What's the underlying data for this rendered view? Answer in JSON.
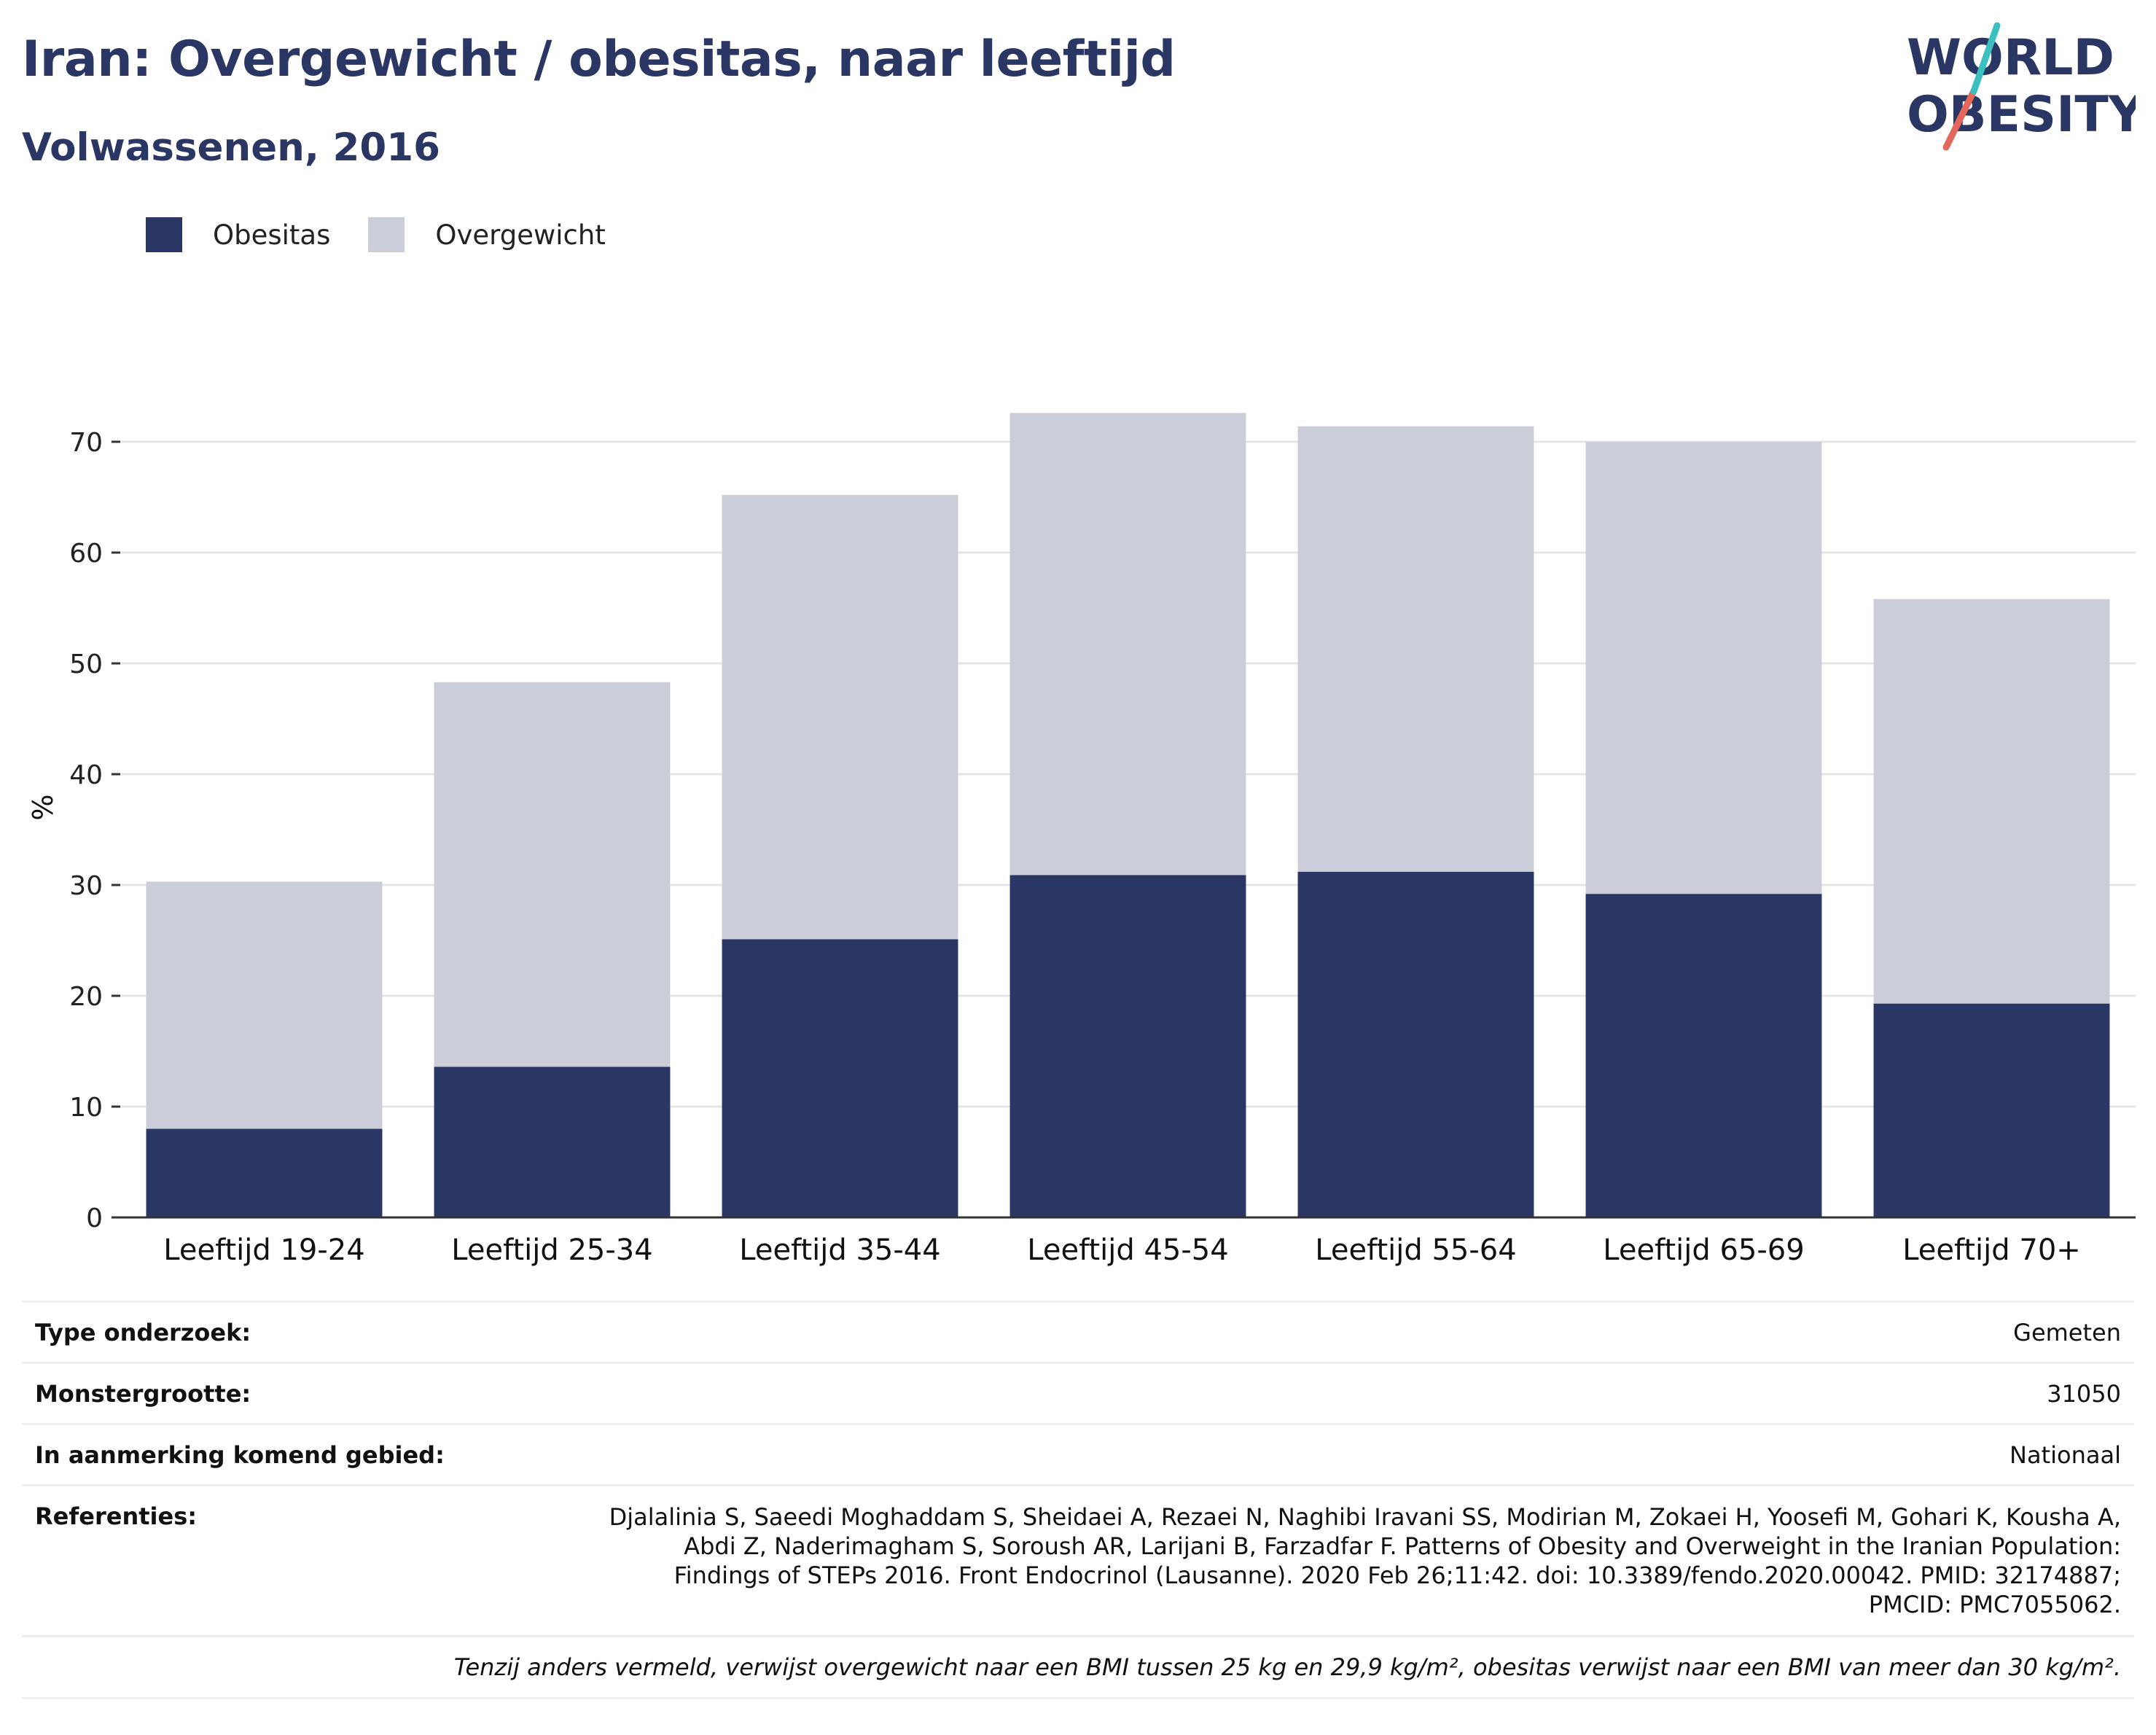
{
  "header": {
    "title": "Iran: Overgewicht / obesitas, naar leeftijd",
    "subtitle": "Volwassenen, 2016"
  },
  "logo": {
    "line1": "WORLD",
    "line2": "OBESITY"
  },
  "legend": {
    "obesity_label": "Obesitas",
    "overweight_label": "Overgewicht"
  },
  "colors": {
    "obesity": "#2a3663",
    "overweight": "#cbcdd8",
    "grid": "#e6e6e6",
    "axis": "#333333",
    "title": "#2a3663",
    "logo_teal": "#3bbfc0",
    "logo_coral": "#e4685a"
  },
  "chart_data": {
    "type": "bar",
    "stacked": true,
    "title": "Iran: Overgewicht / obesitas, naar leeftijd",
    "subtitle": "Volwassenen, 2016",
    "xlabel": "",
    "ylabel": "%",
    "ylim": [
      0,
      75
    ],
    "yticks": [
      0,
      10,
      20,
      30,
      40,
      50,
      60,
      70
    ],
    "grid": true,
    "legend_position": "top-left",
    "categories": [
      "Leeftijd 19-24",
      "Leeftijd 25-34",
      "Leeftijd 35-44",
      "Leeftijd 45-54",
      "Leeftijd 55-64",
      "Leeftijd 65-69",
      "Leeftijd 70+"
    ],
    "series": [
      {
        "name": "Obesitas",
        "values": [
          8.0,
          13.6,
          25.1,
          30.9,
          31.2,
          29.2,
          19.3
        ]
      },
      {
        "name": "Overgewicht",
        "values": [
          22.3,
          34.7,
          40.1,
          41.7,
          40.2,
          40.8,
          36.5
        ]
      }
    ]
  },
  "info": {
    "rows": [
      {
        "key": "Type onderzoek:",
        "value": "Gemeten"
      },
      {
        "key": "Monstergrootte:",
        "value": "31050"
      },
      {
        "key": "In aanmerking komend gebied:",
        "value": "Nationaal"
      }
    ],
    "references_label": "Referenties:",
    "references_text": "Djalalinia S, Saeedi Moghaddam S, Sheidaei A, Rezaei N, Naghibi Iravani SS, Modirian M, Zokaei H, Yoosefi M, Gohari K, Kousha A, Abdi Z, Naderimagham S, Soroush AR, Larijani B, Farzadfar F. Patterns of Obesity and Overweight in the Iranian Population: Findings of STEPs 2016. Front Endocrinol (Lausanne). 2020 Feb 26;11:42. doi: 10.3389/fendo.2020.00042. PMID: 32174887; PMCID: PMC7055062.",
    "footnote": "Tenzij anders vermeld, verwijst overgewicht naar een BMI tussen 25 kg en 29,9 kg/m², obesitas verwijst naar een BMI van meer dan 30 kg/m²."
  }
}
